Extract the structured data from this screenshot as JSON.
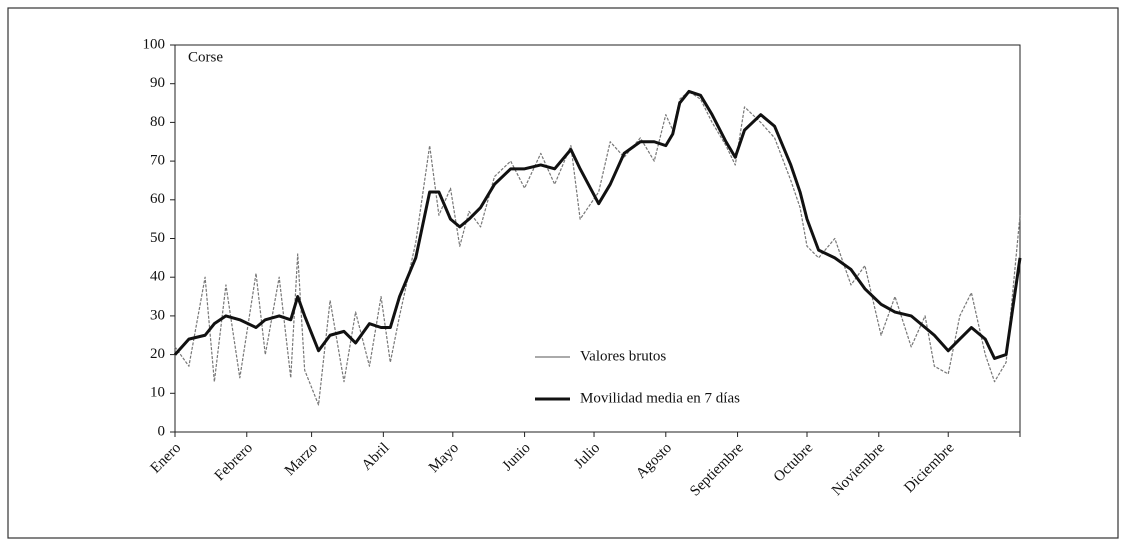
{
  "chart_data": {
    "type": "line",
    "title": "Corse",
    "x": [
      0,
      6,
      13,
      17,
      22,
      28,
      35,
      39,
      45,
      50,
      53,
      56,
      62,
      67,
      73,
      78,
      84,
      89,
      93,
      97,
      104,
      110,
      114,
      119,
      123,
      127,
      132,
      138,
      145,
      151,
      158,
      164,
      171,
      175,
      183,
      188,
      194,
      201,
      207,
      212,
      215,
      218,
      222,
      227,
      232,
      238,
      242,
      246,
      253,
      259,
      266,
      270,
      273,
      278,
      285,
      292,
      298,
      305,
      311,
      318,
      324,
      328,
      334,
      339,
      344,
      350,
      354,
      359,
      365
    ],
    "series": [
      {
        "name": "Valores brutos",
        "color": "#777777",
        "values": [
          22,
          17,
          40,
          13,
          38,
          14,
          41,
          20,
          40,
          14,
          46,
          16,
          7,
          34,
          13,
          31,
          17,
          35,
          18,
          30,
          49,
          74,
          56,
          63,
          48,
          57,
          53,
          66,
          70,
          63,
          72,
          64,
          74,
          55,
          62,
          75,
          71,
          76,
          70,
          82,
          78,
          86,
          88,
          86,
          80,
          74,
          69,
          84,
          80,
          76,
          65,
          58,
          48,
          45,
          50,
          38,
          43,
          25,
          35,
          22,
          30,
          17,
          15,
          30,
          36,
          20,
          13,
          18,
          56
        ]
      },
      {
        "name": "Movilidad media en 7 días",
        "color": "#111111",
        "values": [
          20,
          24,
          25,
          28,
          30,
          29,
          27,
          29,
          30,
          29,
          35,
          30,
          21,
          25,
          26,
          23,
          28,
          27,
          27,
          35,
          45,
          62,
          62,
          55,
          53,
          55,
          58,
          64,
          68,
          68,
          69,
          68,
          73,
          68,
          59,
          64,
          72,
          75,
          75,
          74,
          77,
          85,
          88,
          87,
          82,
          75,
          71,
          78,
          82,
          79,
          69,
          62,
          55,
          47,
          45,
          42,
          37,
          33,
          31,
          30,
          27,
          25,
          21,
          24,
          27,
          24,
          19,
          20,
          45
        ]
      }
    ],
    "xlim": [
      0,
      365
    ],
    "xticks": [
      {
        "value": 0,
        "label": "Enero"
      },
      {
        "value": 31,
        "label": "Febrero"
      },
      {
        "value": 59,
        "label": "Marzo"
      },
      {
        "value": 90,
        "label": "Abril"
      },
      {
        "value": 120,
        "label": "Mayo"
      },
      {
        "value": 151,
        "label": "Junio"
      },
      {
        "value": 181,
        "label": "Julio"
      },
      {
        "value": 212,
        "label": "Agosto"
      },
      {
        "value": 243,
        "label": "Septiembre"
      },
      {
        "value": 273,
        "label": "Octubre"
      },
      {
        "value": 304,
        "label": "Noviembre"
      },
      {
        "value": 334,
        "label": "Diciembre"
      },
      {
        "value": 365,
        "label": ""
      }
    ],
    "ylim": [
      0,
      100
    ],
    "yticks": [
      0,
      10,
      20,
      30,
      40,
      50,
      60,
      70,
      80,
      90,
      100
    ],
    "legend": "lower center"
  }
}
